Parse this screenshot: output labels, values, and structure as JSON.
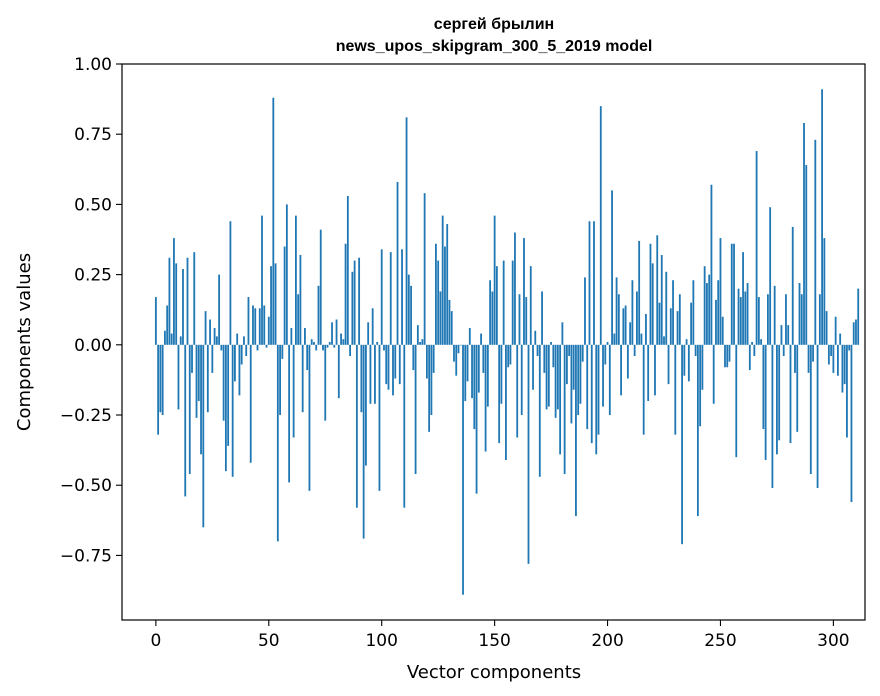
{
  "chart_data": {
    "type": "bar",
    "title_lines": [
      "сергей брылин",
      "news_upos_skipgram_300_5_2019 model"
    ],
    "xlabel": "Vector components",
    "ylabel": "Components values",
    "xlim": [
      -15,
      314
    ],
    "ylim": [
      -0.98,
      1.0
    ],
    "xticks": [
      0,
      50,
      100,
      150,
      200,
      250,
      300
    ],
    "xtick_labels": [
      "0",
      "50",
      "100",
      "150",
      "200",
      "250",
      "300"
    ],
    "yticks": [
      -0.75,
      -0.5,
      -0.25,
      0.0,
      0.25,
      0.5,
      0.75,
      1.0
    ],
    "ytick_labels": [
      "−0.75",
      "−0.50",
      "−0.25",
      "0.00",
      "0.25",
      "0.50",
      "0.75",
      "1.00"
    ],
    "bar_color": "#1f77b4",
    "grid": false,
    "values": [
      0.17,
      -0.32,
      -0.24,
      -0.25,
      0.05,
      0.14,
      0.31,
      0.04,
      0.38,
      0.29,
      -0.23,
      0.03,
      0.27,
      -0.54,
      0.31,
      -0.46,
      -0.1,
      0.33,
      -0.26,
      -0.2,
      -0.39,
      -0.65,
      0.12,
      -0.24,
      0.09,
      -0.1,
      0.06,
      0.03,
      0.25,
      -0.02,
      -0.27,
      -0.45,
      -0.36,
      0.44,
      -0.47,
      -0.13,
      0.04,
      -0.18,
      -0.07,
      0.03,
      -0.04,
      0.17,
      -0.42,
      0.14,
      0.13,
      -0.02,
      0.13,
      0.46,
      0.14,
      -0.01,
      0.1,
      0.28,
      0.88,
      0.29,
      -0.7,
      -0.25,
      -0.05,
      0.35,
      0.5,
      -0.49,
      0.06,
      -0.33,
      0.46,
      0.18,
      0.32,
      -0.24,
      0.06,
      -0.09,
      -0.52,
      0.02,
      0.01,
      -0.02,
      0.21,
      0.41,
      -0.02,
      -0.27,
      -0.01,
      0.01,
      0.08,
      -0.01,
      0.09,
      -0.19,
      0.04,
      0.02,
      0.36,
      0.53,
      -0.04,
      0.26,
      0.3,
      -0.58,
      0.31,
      -0.24,
      -0.69,
      -0.43,
      0.08,
      -0.21,
      0.13,
      -0.21,
      0.01,
      -0.52,
      0.34,
      -0.02,
      -0.14,
      -0.16,
      0.33,
      -0.18,
      -0.12,
      0.58,
      -0.14,
      0.34,
      -0.58,
      0.81,
      0.25,
      0.21,
      -0.09,
      -0.46,
      0.07,
      0.01,
      0.02,
      0.54,
      -0.12,
      -0.31,
      -0.25,
      -0.1,
      0.36,
      0.3,
      0.19,
      0.46,
      0.35,
      0.43,
      0.16,
      0.12,
      -0.06,
      -0.11,
      -0.03,
      0.0,
      -0.89,
      -0.2,
      -0.13,
      0.06,
      -0.19,
      -0.3,
      -0.53,
      -0.17,
      0.04,
      -0.1,
      -0.38,
      -0.22,
      0.23,
      0.19,
      0.46,
      0.28,
      -0.35,
      -0.21,
      0.3,
      -0.41,
      -0.08,
      -0.07,
      0.3,
      0.4,
      -0.33,
      0.18,
      -0.25,
      0.38,
      0.17,
      -0.78,
      0.28,
      -0.16,
      0.05,
      -0.04,
      -0.47,
      0.19,
      -0.1,
      -0.23,
      -0.22,
      0.01,
      -0.08,
      -0.26,
      -0.23,
      -0.39,
      0.08,
      -0.46,
      -0.14,
      -0.04,
      -0.28,
      -0.16,
      -0.61,
      -0.25,
      -0.21,
      -0.06,
      0.24,
      -0.3,
      0.44,
      -0.35,
      0.44,
      -0.39,
      -0.32,
      0.85,
      -0.22,
      -0.07,
      0.01,
      -0.25,
      0.55,
      0.04,
      0.24,
      0.18,
      -0.18,
      0.13,
      0.14,
      -0.12,
      0.08,
      0.23,
      -0.04,
      0.19,
      0.37,
      0.04,
      -0.32,
      0.11,
      -0.2,
      0.36,
      0.29,
      -0.18,
      0.39,
      0.15,
      0.32,
      0.03,
      0.26,
      -0.14,
      0.13,
      0.23,
      -0.32,
      0.12,
      0.18,
      -0.71,
      -0.11,
      0.02,
      -0.13,
      0.15,
      0.23,
      -0.04,
      -0.61,
      -0.29,
      -0.16,
      0.28,
      0.22,
      0.25,
      0.57,
      -0.21,
      0.16,
      0.23,
      0.38,
      0.1,
      -0.08,
      -0.08,
      -0.06,
      0.36,
      0.36,
      -0.4,
      0.2,
      0.17,
      0.33,
      0.19,
      0.22,
      -0.09,
      0.01,
      -0.04,
      0.69,
      0.17,
      0.02,
      -0.3,
      -0.41,
      0.18,
      0.49,
      -0.51,
      0.21,
      -0.39,
      -0.34,
      0.07,
      -0.04,
      0.18,
      0.07,
      -0.35,
      0.42,
      -0.1,
      -0.31,
      0.22,
      0.18,
      0.79,
      0.64,
      -0.1,
      -0.46,
      -0.06,
      0.73,
      -0.51,
      0.18,
      0.91,
      0.38,
      0.12,
      -0.07,
      -0.04,
      -0.1,
      0.1,
      -0.11,
      0.04,
      -0.17,
      -0.14,
      -0.33,
      -0.02,
      -0.56,
      0.08,
      0.09,
      0.2
    ]
  }
}
